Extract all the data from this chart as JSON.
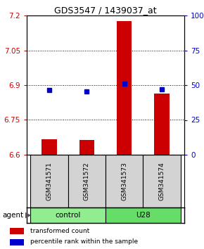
{
  "title": "GDS3547 / 1439037_at",
  "samples": [
    "GSM341571",
    "GSM341572",
    "GSM341573",
    "GSM341574"
  ],
  "bar_values": [
    6.668,
    6.665,
    7.175,
    6.865
  ],
  "bar_bottom": 6.6,
  "percentile_values": [
    6.878,
    6.872,
    6.905,
    6.882
  ],
  "bar_color": "#CC0000",
  "dot_color": "#0000CC",
  "ylim_left": [
    6.6,
    7.2
  ],
  "ylim_right": [
    0,
    100
  ],
  "yticks_left": [
    6.6,
    6.75,
    6.9,
    7.05,
    7.2
  ],
  "yticks_right": [
    0,
    25,
    50,
    75,
    100
  ],
  "ytick_labels_left": [
    "6.6",
    "6.75",
    "6.9",
    "7.05",
    "7.2"
  ],
  "ytick_labels_right": [
    "0",
    "25",
    "50",
    "75",
    "100%"
  ],
  "grid_values": [
    6.75,
    6.9,
    7.05
  ],
  "bar_width": 0.4,
  "label_transformed": "transformed count",
  "label_percentile": "percentile rank within the sample",
  "agent_label": "agent",
  "control_color": "#90EE90",
  "u28_color": "#66DD66",
  "sample_bg": "#D3D3D3"
}
